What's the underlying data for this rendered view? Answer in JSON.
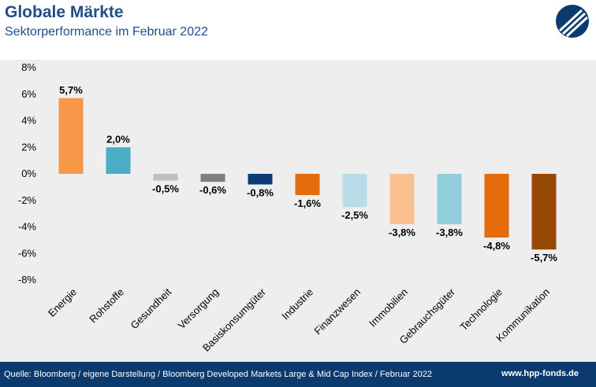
{
  "header": {
    "title": "Globale Märkte",
    "subtitle": "Sektorperformance im Februar 2022"
  },
  "footer": {
    "source": "Quelle: Bloomberg / eigene Darstellung / Bloomberg Developed Markets Large & Mid Cap Index / Februar 2022",
    "website": "www.hpp-fonds.de"
  },
  "logo": {
    "icon": "hpp-logo-icon",
    "color": "#0b3a6e"
  },
  "colors": {
    "band": "#0b3a6e",
    "panel": "#eeeeee"
  },
  "chart_data": {
    "type": "bar",
    "title": "",
    "xlabel": "",
    "ylabel": "",
    "ylim": [
      -8,
      8
    ],
    "yticks": [
      8,
      6,
      4,
      2,
      0,
      -2,
      -4,
      -6,
      -8
    ],
    "ytick_labels": [
      "8%",
      "6%",
      "4%",
      "2%",
      "0%",
      "-2%",
      "-4%",
      "-6%",
      "-8%"
    ],
    "grid": false,
    "categories": [
      "Energie",
      "Rohstoffe",
      "Gesundheit",
      "Versorgung",
      "Basiskonsumgüter",
      "Industrie",
      "Finanzwesen",
      "Immobilien",
      "Gebrauchsgüter",
      "Technologie",
      "Kommunikation"
    ],
    "values": [
      5.7,
      2.0,
      -0.5,
      -0.6,
      -0.8,
      -1.6,
      -2.5,
      -3.8,
      -3.8,
      -4.8,
      -5.7
    ],
    "data_labels": [
      "5,7%",
      "2,0%",
      "-0,5%",
      "-0,6%",
      "-0,8%",
      "-1,6%",
      "-2,5%",
      "-3,8%",
      "-3,8%",
      "-4,8%",
      "-5,7%"
    ],
    "bar_colors": [
      "#f79646",
      "#4bacc6",
      "#bfbfbf",
      "#7f7f7f",
      "#0d3c78",
      "#e46c0a",
      "#b7dee8",
      "#fac090",
      "#92cddc",
      "#e46c0a",
      "#974706"
    ]
  }
}
